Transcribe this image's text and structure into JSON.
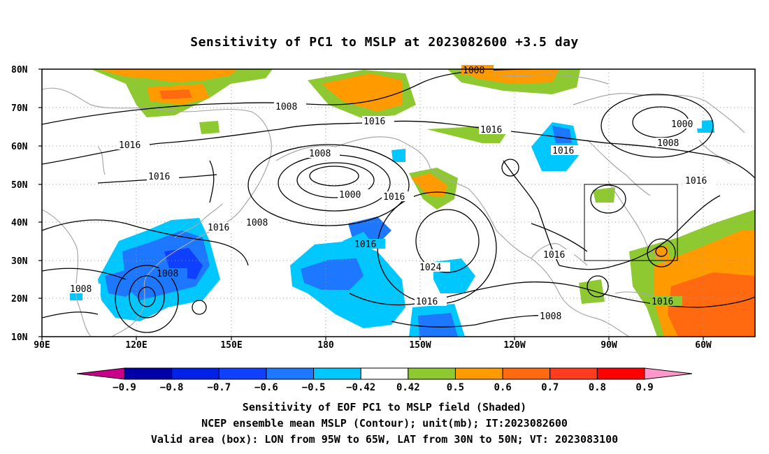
{
  "title": "Sensitivity of PC1 to MSLP at 2023082600 +3.5 day",
  "map": {
    "lon_ticks": [
      "90E",
      "120E",
      "150E",
      "180",
      "150W",
      "120W",
      "90W",
      "60W"
    ],
    "lat_ticks": [
      "80N",
      "70N",
      "60N",
      "50N",
      "40N",
      "30N",
      "20N",
      "10N"
    ],
    "extent": {
      "lon_west": "90E",
      "lon_east": "45W",
      "lat_south": "10N",
      "lat_north": "80N"
    },
    "valid_box": {
      "lon_from": "95W",
      "lon_to": "65W",
      "lat_from": "30N",
      "lat_to": "50N"
    },
    "contour_labels": [
      "1008",
      "1008",
      "1016",
      "1000",
      "1016",
      "1008",
      "1016",
      "1008",
      "1016",
      "1000",
      "1016",
      "1016",
      "1008",
      "1016",
      "1024",
      "1016",
      "1016",
      "1008",
      "1016",
      "1008",
      "1016"
    ]
  },
  "colorbar": {
    "labels": [
      "-0.9",
      "-0.8",
      "-0.7",
      "-0.6",
      "-0.5",
      "-0.42",
      "0.42",
      "0.5",
      "0.6",
      "0.7",
      "0.8",
      "0.9"
    ],
    "colors": [
      "#0000a8",
      "#0022e8",
      "#1040ff",
      "#1e78ff",
      "#00c8ff",
      "#ffffff",
      "#8ec932",
      "#ff9a00",
      "#ff6a10",
      "#ff3c1e",
      "#ff0000"
    ],
    "end_low": "#c8008a",
    "end_high": "#ff98c8"
  },
  "captions": [
    "Sensitivity of EOF PC1 to MSLP field (Shaded)",
    "NCEP ensemble mean MSLP (Contour); unit(mb); IT:2023082600",
    "Valid area (box): LON from 95W to 65W, LAT from 30N to 50N; VT: 2023083100"
  ]
}
